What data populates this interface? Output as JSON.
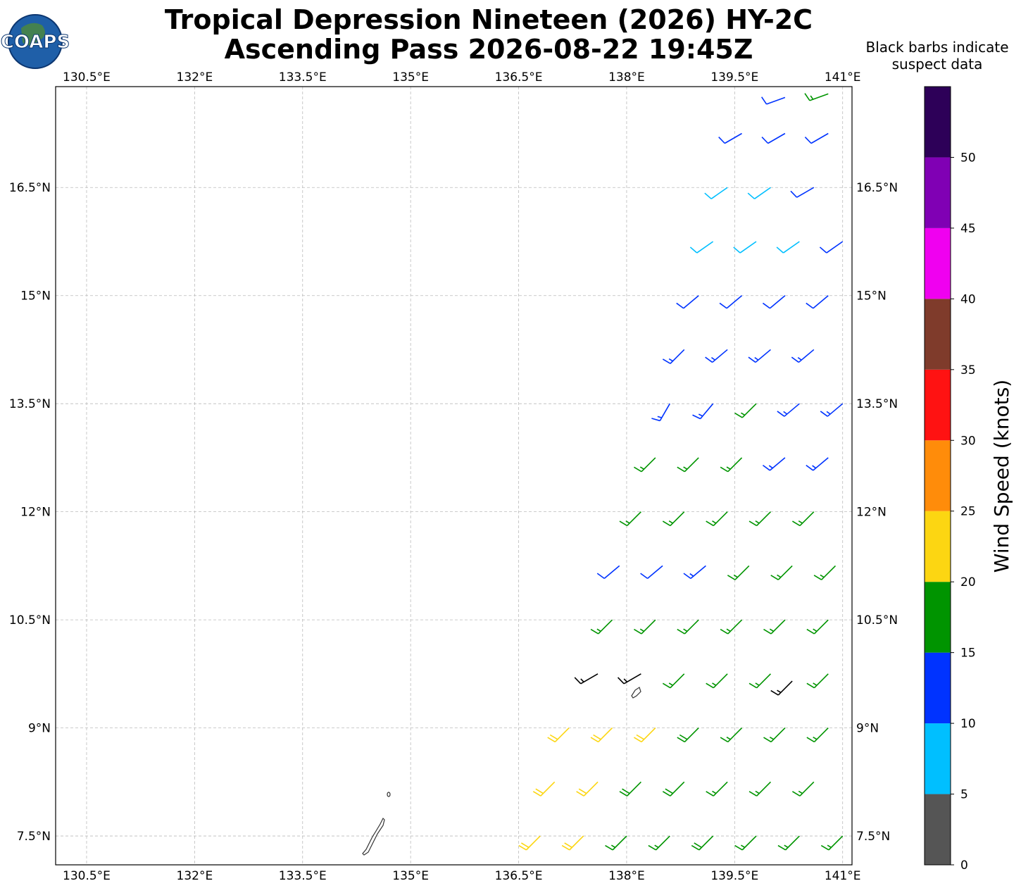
{
  "chart_data": {
    "type": "wind-barbs",
    "logo_text": "COAPS",
    "title": "Tropical Depression Nineteen (2026) HY-2C",
    "subtitle": "Ascending Pass 2026-08-22 19:45Z",
    "annotation": [
      "Black barbs indicate",
      "suspect data"
    ],
    "xlim": [
      130.07,
      141.13
    ],
    "ylim": [
      7.1,
      17.9
    ],
    "xticks": [
      {
        "value": 130.5,
        "label": "130.5°E"
      },
      {
        "value": 132,
        "label": "132°E"
      },
      {
        "value": 133.5,
        "label": "133.5°E"
      },
      {
        "value": 135,
        "label": "135°E"
      },
      {
        "value": 136.5,
        "label": "136.5°E"
      },
      {
        "value": 138,
        "label": "138°E"
      },
      {
        "value": 139.5,
        "label": "139.5°E"
      },
      {
        "value": 141,
        "label": "141°E"
      }
    ],
    "yticks": [
      {
        "value": 7.5,
        "label": "7.5°N"
      },
      {
        "value": 9,
        "label": "9°N"
      },
      {
        "value": 10.5,
        "label": "10.5°N"
      },
      {
        "value": 12,
        "label": "12°N"
      },
      {
        "value": 13.5,
        "label": "13.5°N"
      },
      {
        "value": 15,
        "label": "15°N"
      },
      {
        "value": 16.5,
        "label": "16.5°N"
      }
    ],
    "grid": true,
    "suspect_color": "#000000",
    "colorbar": {
      "label": "Wind Speed (knots)",
      "lim": [
        0,
        55
      ],
      "ticks": [
        0,
        5,
        10,
        15,
        20,
        25,
        30,
        35,
        40,
        45,
        50
      ],
      "bounds": [
        0,
        5,
        10,
        15,
        20,
        25,
        30,
        35,
        40,
        45,
        50,
        55
      ],
      "colors": [
        "#555555",
        "#00bfff",
        "#0033ff",
        "#009400",
        "#fcd612",
        "#ff8c0a",
        "#ff1212",
        "#7f3b2b",
        "#f000f0",
        "#8000b4",
        "#2d0058"
      ]
    },
    "barbs": [
      {
        "lon": 136.8,
        "lat": 7.5,
        "speed": 22,
        "dir": 225
      },
      {
        "lon": 137.4,
        "lat": 7.5,
        "speed": 21,
        "dir": 225
      },
      {
        "lon": 138.0,
        "lat": 7.5,
        "speed": 17,
        "dir": 225
      },
      {
        "lon": 138.6,
        "lat": 7.5,
        "speed": 17,
        "dir": 225
      },
      {
        "lon": 139.2,
        "lat": 7.5,
        "speed": 18,
        "dir": 225
      },
      {
        "lon": 139.8,
        "lat": 7.5,
        "speed": 17,
        "dir": 225
      },
      {
        "lon": 140.4,
        "lat": 7.5,
        "speed": 17,
        "dir": 225
      },
      {
        "lon": 141.0,
        "lat": 7.5,
        "speed": 16,
        "dir": 225
      },
      {
        "lon": 137.0,
        "lat": 8.25,
        "speed": 22,
        "dir": 225
      },
      {
        "lon": 137.6,
        "lat": 8.25,
        "speed": 22,
        "dir": 225
      },
      {
        "lon": 138.2,
        "lat": 8.25,
        "speed": 18,
        "dir": 225
      },
      {
        "lon": 138.8,
        "lat": 8.25,
        "speed": 18,
        "dir": 225
      },
      {
        "lon": 139.4,
        "lat": 8.25,
        "speed": 17,
        "dir": 225
      },
      {
        "lon": 140.0,
        "lat": 8.25,
        "speed": 17,
        "dir": 225
      },
      {
        "lon": 140.6,
        "lat": 8.25,
        "speed": 16,
        "dir": 225
      },
      {
        "lon": 137.2,
        "lat": 9.0,
        "speed": 21,
        "dir": 225
      },
      {
        "lon": 137.8,
        "lat": 9.0,
        "speed": 21,
        "dir": 225
      },
      {
        "lon": 138.4,
        "lat": 9.0,
        "speed": 21,
        "dir": 225
      },
      {
        "lon": 139.0,
        "lat": 9.0,
        "speed": 18,
        "dir": 225
      },
      {
        "lon": 139.6,
        "lat": 9.0,
        "speed": 17,
        "dir": 225
      },
      {
        "lon": 140.2,
        "lat": 9.0,
        "speed": 17,
        "dir": 225
      },
      {
        "lon": 140.8,
        "lat": 9.0,
        "speed": 16,
        "dir": 225
      },
      {
        "lon": 137.6,
        "lat": 9.75,
        "speed": 15,
        "dir": 240,
        "suspect": true
      },
      {
        "lon": 138.2,
        "lat": 9.75,
        "speed": 15,
        "dir": 240,
        "suspect": true
      },
      {
        "lon": 138.8,
        "lat": 9.75,
        "speed": 17,
        "dir": 225
      },
      {
        "lon": 139.4,
        "lat": 9.75,
        "speed": 17,
        "dir": 225
      },
      {
        "lon": 140.0,
        "lat": 9.75,
        "speed": 17,
        "dir": 225
      },
      {
        "lon": 140.3,
        "lat": 9.65,
        "speed": 15,
        "dir": 225,
        "suspect": true
      },
      {
        "lon": 140.8,
        "lat": 9.75,
        "speed": 16,
        "dir": 225
      },
      {
        "lon": 137.8,
        "lat": 10.5,
        "speed": 16,
        "dir": 225
      },
      {
        "lon": 138.4,
        "lat": 10.5,
        "speed": 17,
        "dir": 225
      },
      {
        "lon": 139.0,
        "lat": 10.5,
        "speed": 17,
        "dir": 225
      },
      {
        "lon": 139.6,
        "lat": 10.5,
        "speed": 17,
        "dir": 225
      },
      {
        "lon": 140.2,
        "lat": 10.5,
        "speed": 16,
        "dir": 225
      },
      {
        "lon": 140.8,
        "lat": 10.5,
        "speed": 16,
        "dir": 225
      },
      {
        "lon": 137.9,
        "lat": 11.25,
        "speed": 12,
        "dir": 230
      },
      {
        "lon": 138.5,
        "lat": 11.25,
        "speed": 12,
        "dir": 230
      },
      {
        "lon": 139.1,
        "lat": 11.25,
        "speed": 13,
        "dir": 230
      },
      {
        "lon": 139.7,
        "lat": 11.25,
        "speed": 16,
        "dir": 225
      },
      {
        "lon": 140.3,
        "lat": 11.25,
        "speed": 16,
        "dir": 225
      },
      {
        "lon": 140.9,
        "lat": 11.25,
        "speed": 16,
        "dir": 225
      },
      {
        "lon": 138.2,
        "lat": 12.0,
        "speed": 16,
        "dir": 225
      },
      {
        "lon": 138.8,
        "lat": 12.0,
        "speed": 16,
        "dir": 225
      },
      {
        "lon": 139.4,
        "lat": 12.0,
        "speed": 16,
        "dir": 225
      },
      {
        "lon": 140.0,
        "lat": 12.0,
        "speed": 16,
        "dir": 225
      },
      {
        "lon": 140.6,
        "lat": 12.0,
        "speed": 16,
        "dir": 225
      },
      {
        "lon": 138.4,
        "lat": 12.75,
        "speed": 16,
        "dir": 225
      },
      {
        "lon": 139.0,
        "lat": 12.75,
        "speed": 16,
        "dir": 225
      },
      {
        "lon": 139.6,
        "lat": 12.75,
        "speed": 16,
        "dir": 225
      },
      {
        "lon": 140.2,
        "lat": 12.75,
        "speed": 13,
        "dir": 230
      },
      {
        "lon": 140.8,
        "lat": 12.75,
        "speed": 13,
        "dir": 230
      },
      {
        "lon": 138.6,
        "lat": 13.5,
        "speed": 13,
        "dir": 210
      },
      {
        "lon": 139.2,
        "lat": 13.5,
        "speed": 13,
        "dir": 220
      },
      {
        "lon": 139.8,
        "lat": 13.5,
        "speed": 16,
        "dir": 225
      },
      {
        "lon": 140.4,
        "lat": 13.5,
        "speed": 13,
        "dir": 230
      },
      {
        "lon": 141.0,
        "lat": 13.5,
        "speed": 13,
        "dir": 230
      },
      {
        "lon": 138.8,
        "lat": 14.25,
        "speed": 13,
        "dir": 225
      },
      {
        "lon": 139.4,
        "lat": 14.25,
        "speed": 13,
        "dir": 230
      },
      {
        "lon": 140.0,
        "lat": 14.25,
        "speed": 13,
        "dir": 230
      },
      {
        "lon": 140.6,
        "lat": 14.25,
        "speed": 13,
        "dir": 230
      },
      {
        "lon": 139.0,
        "lat": 15.0,
        "speed": 12,
        "dir": 230
      },
      {
        "lon": 139.6,
        "lat": 15.0,
        "speed": 12,
        "dir": 230
      },
      {
        "lon": 140.2,
        "lat": 15.0,
        "speed": 12,
        "dir": 230
      },
      {
        "lon": 140.8,
        "lat": 15.0,
        "speed": 12,
        "dir": 230
      },
      {
        "lon": 139.2,
        "lat": 15.75,
        "speed": 8,
        "dir": 235
      },
      {
        "lon": 139.8,
        "lat": 15.75,
        "speed": 8,
        "dir": 235
      },
      {
        "lon": 140.4,
        "lat": 15.75,
        "speed": 8,
        "dir": 235
      },
      {
        "lon": 141.0,
        "lat": 15.75,
        "speed": 12,
        "dir": 235
      },
      {
        "lon": 139.4,
        "lat": 16.5,
        "speed": 8,
        "dir": 235
      },
      {
        "lon": 140.0,
        "lat": 16.5,
        "speed": 8,
        "dir": 235
      },
      {
        "lon": 140.6,
        "lat": 16.5,
        "speed": 12,
        "dir": 240
      },
      {
        "lon": 139.6,
        "lat": 17.25,
        "speed": 12,
        "dir": 240
      },
      {
        "lon": 140.2,
        "lat": 17.25,
        "speed": 12,
        "dir": 240
      },
      {
        "lon": 140.8,
        "lat": 17.25,
        "speed": 12,
        "dir": 240
      },
      {
        "lon": 140.2,
        "lat": 17.75,
        "speed": 12,
        "dir": 250
      },
      {
        "lon": 140.8,
        "lat": 17.8,
        "speed": 16,
        "dir": 250
      }
    ]
  }
}
